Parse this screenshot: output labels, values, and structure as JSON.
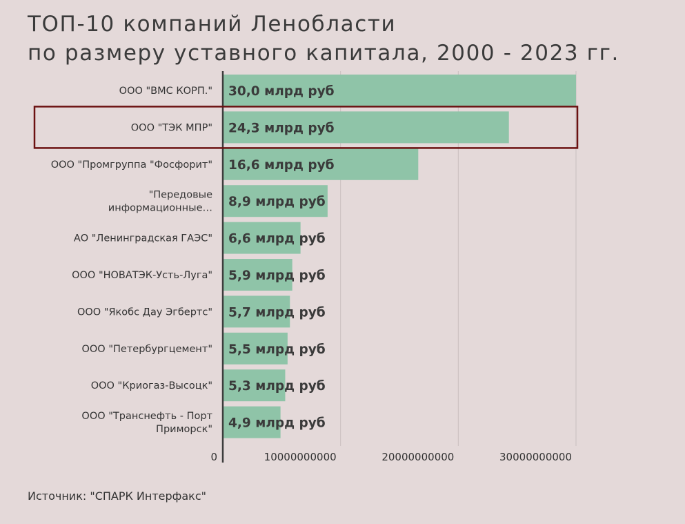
{
  "title_lines": [
    "ТОП-10 компаний Ленобласти",
    "по размеру уставного капитала, 2000 - 2023 гг."
  ],
  "source": "Источник: \"СПАРК Интерфакс\"",
  "colors": {
    "background": "#e4d9d9",
    "bar": "#8fc4a8",
    "highlight_box": "#6b1111",
    "grid": "#c9bfbf",
    "axis": "#3d3d3d"
  },
  "chart_data": {
    "type": "bar",
    "orientation": "horizontal",
    "title": "ТОП-10 компаний Ленобласти по размеру уставного капитала, 2000 - 2023 гг.",
    "categories": [
      [
        "ООО \"ВМС КОРП.\""
      ],
      [
        "ООО \"ТЭК МПР\""
      ],
      [
        "ООО \"Промгруппа \"Фосфорит\""
      ],
      [
        "\"Передовые",
        "информационные…"
      ],
      [
        "АО \"Ленинградская ГАЭС\""
      ],
      [
        "ООО \"НОВАТЭК-Усть-Луга\""
      ],
      [
        "ООО \"Якобс Дау Эгбертс\""
      ],
      [
        "ООО \"Петербургцемент\""
      ],
      [
        "ООО \"Криогаз-Высоцк\""
      ],
      [
        "ООО \"Транснефть - Порт",
        "Приморск\""
      ]
    ],
    "values": [
      30000000000,
      24300000000,
      16600000000,
      8900000000,
      6600000000,
      5900000000,
      5700000000,
      5500000000,
      5300000000,
      4900000000
    ],
    "data_labels": [
      "30,0 млрд руб",
      "24,3 млрд руб",
      "16,6 млрд руб",
      "8,9 млрд руб",
      "6,6 млрд руб",
      "5,9 млрд руб",
      "5,7 млрд руб",
      "5,5 млрд руб",
      "5,3 млрд руб",
      "4,9 млрд руб"
    ],
    "xlim": [
      0,
      30000000000
    ],
    "x_ticks": [
      0,
      10000000000,
      20000000000,
      30000000000
    ],
    "x_tick_labels": [
      "0",
      "10000000000",
      "20000000000",
      "30000000000"
    ],
    "grid": true,
    "highlighted_index": 1,
    "legend": "none"
  }
}
